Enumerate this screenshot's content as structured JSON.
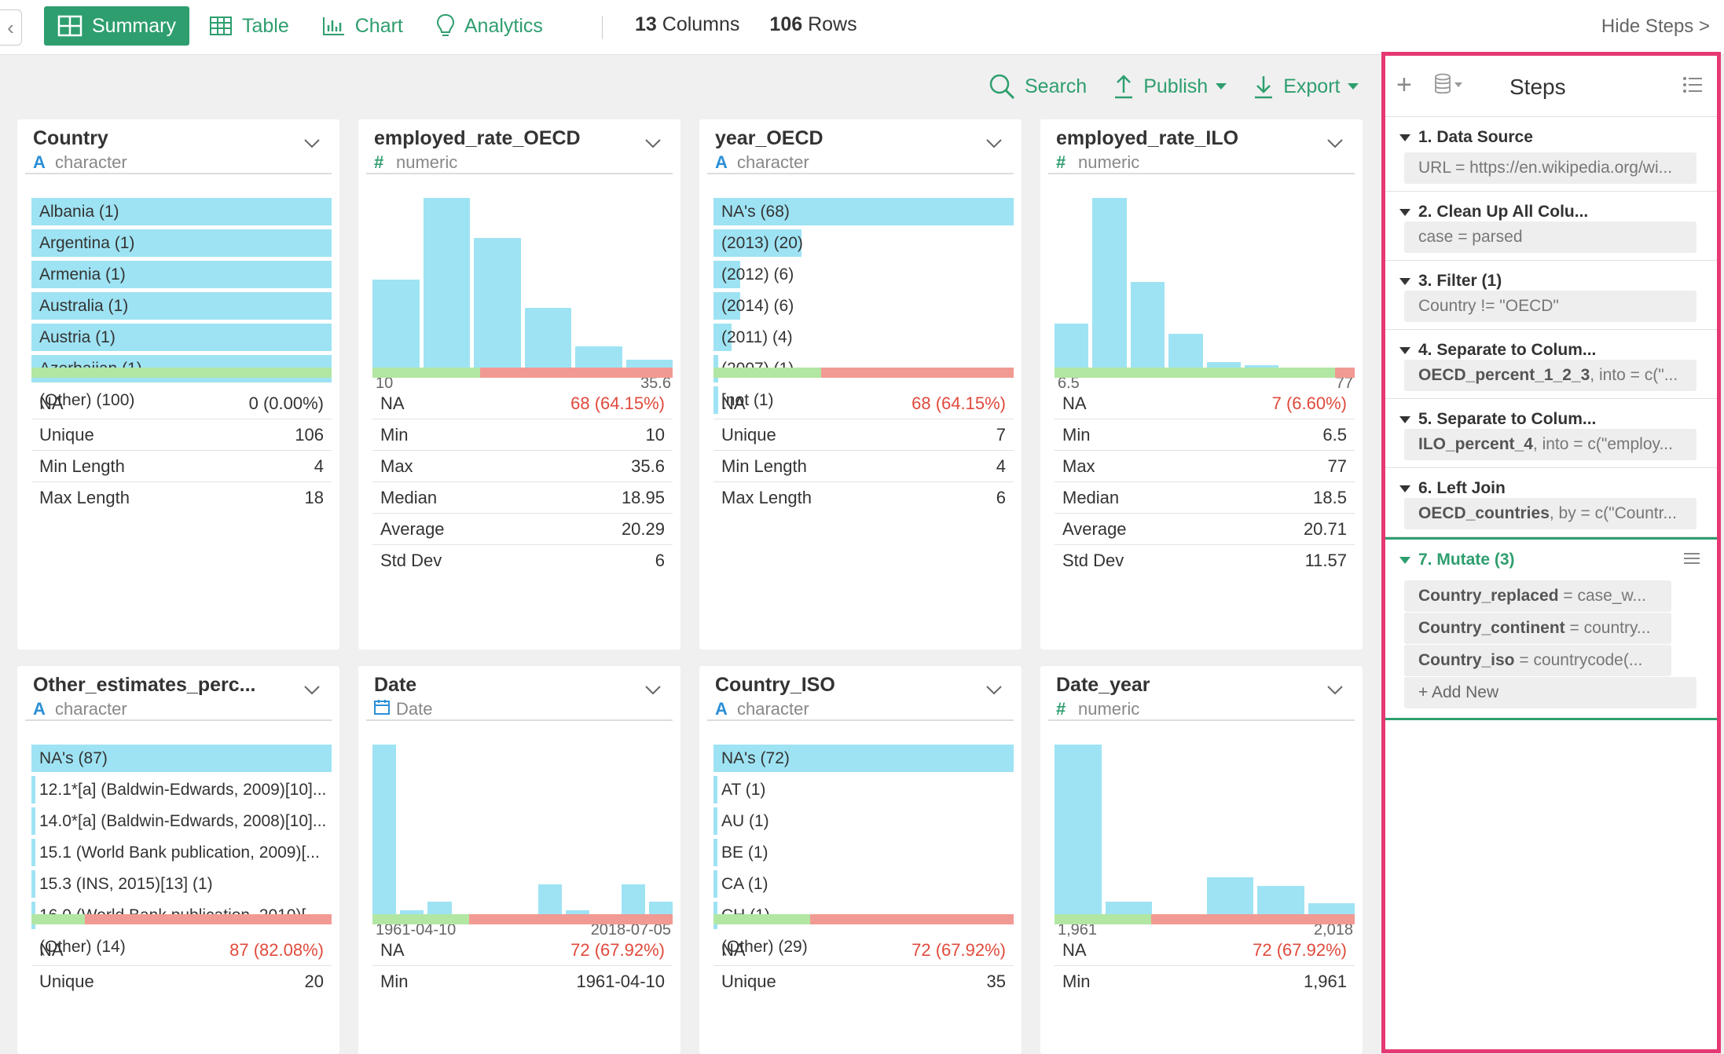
{
  "tabs": [
    {
      "label": "Summary",
      "icon": "summary-icon",
      "active": true
    },
    {
      "label": "Table",
      "icon": "table-icon",
      "active": false
    },
    {
      "label": "Chart",
      "icon": "chart-icon",
      "active": false
    },
    {
      "label": "Analytics",
      "icon": "lightbulb-icon",
      "active": false
    }
  ],
  "counts": {
    "columns_num": "13",
    "columns_label": "Columns",
    "rows_num": "106",
    "rows_label": "Rows"
  },
  "hide_steps": "Hide Steps >",
  "toolbar": {
    "search": "Search",
    "publish": "Publish",
    "export": "Export"
  },
  "colors": {
    "accent": "#2e9e6e",
    "bar": "#9ee3f3",
    "na_ok": "#b2e6a3",
    "na_bad": "#f19a93",
    "highlight": "#e63873",
    "red_text": "#e04a3c"
  },
  "cards": [
    {
      "name": "Country",
      "type_symbol": "A",
      "type": "character",
      "values": [
        {
          "label": "Albania (1)",
          "frac": 1.0
        },
        {
          "label": "Argentina (1)",
          "frac": 1.0
        },
        {
          "label": "Armenia (1)",
          "frac": 1.0
        },
        {
          "label": "Australia (1)",
          "frac": 1.0
        },
        {
          "label": "Austria (1)",
          "frac": 1.0
        },
        {
          "label": "Azerbaijan (1)",
          "frac": 1.0
        },
        {
          "label": "(Other) (100)",
          "frac": 0
        }
      ],
      "na_fraction": 0.0,
      "stats": [
        {
          "label": "NA",
          "value": "0 (0.00%)",
          "red": false
        },
        {
          "label": "Unique",
          "value": "106"
        },
        {
          "label": "Min Length",
          "value": "4"
        },
        {
          "label": "Max Length",
          "value": "18"
        }
      ]
    },
    {
      "name": "employed_rate_OECD",
      "type_symbol": "#",
      "type": "numeric",
      "histogram": [
        0.53,
        1.0,
        0.77,
        0.37,
        0.15,
        0.07
      ],
      "min_label": "10",
      "max_label": "35.6",
      "na_fraction": 0.6415,
      "stats": [
        {
          "label": "NA",
          "value": "68 (64.15%)",
          "red": true
        },
        {
          "label": "Min",
          "value": "10"
        },
        {
          "label": "Max",
          "value": "35.6"
        },
        {
          "label": "Median",
          "value": "18.95"
        },
        {
          "label": "Average",
          "value": "20.29"
        },
        {
          "label": "Std Dev",
          "value": "6"
        }
      ]
    },
    {
      "name": "year_OECD",
      "type_symbol": "A",
      "type": "character",
      "values": [
        {
          "label": "NA's (68)",
          "frac": 1.0
        },
        {
          "label": "(2013) (20)",
          "frac": 0.294
        },
        {
          "label": "(2012) (6)",
          "frac": 0.088
        },
        {
          "label": "(2014) (6)",
          "frac": 0.088
        },
        {
          "label": "(2011) (4)",
          "frac": 0.059
        },
        {
          "label": "(2007) (1)",
          "frac": 0.015
        },
        {
          "label": "[not (1)",
          "frac": 0.015
        }
      ],
      "na_fraction": 0.6415,
      "stats": [
        {
          "label": "NA",
          "value": "68 (64.15%)",
          "red": true
        },
        {
          "label": "Unique",
          "value": "7"
        },
        {
          "label": "Min Length",
          "value": "4"
        },
        {
          "label": "Max Length",
          "value": "6"
        }
      ]
    },
    {
      "name": "employed_rate_ILO",
      "type_symbol": "#",
      "type": "numeric",
      "histogram": [
        0.28,
        1.0,
        0.52,
        0.22,
        0.06,
        0.04,
        0.01,
        0.02
      ],
      "min_label": "6.5",
      "max_label": "77",
      "na_fraction": 0.066,
      "stats": [
        {
          "label": "NA",
          "value": "7 (6.60%)",
          "red": true
        },
        {
          "label": "Min",
          "value": "6.5"
        },
        {
          "label": "Max",
          "value": "77"
        },
        {
          "label": "Median",
          "value": "18.5"
        },
        {
          "label": "Average",
          "value": "20.71"
        },
        {
          "label": "Std Dev",
          "value": "11.57"
        }
      ]
    },
    {
      "name": "Other_estimates_perc...",
      "type_symbol": "A",
      "type": "character",
      "values": [
        {
          "label": "NA's (87)",
          "frac": 1.0
        },
        {
          "label": "12.1*[a] (Baldwin-Edwards, 2009)[10]...",
          "frac": 0.012
        },
        {
          "label": "14.0*[a] (Baldwin-Edwards, 2008)[10]...",
          "frac": 0.012
        },
        {
          "label": "15.1 (World Bank publication, 2009)[...",
          "frac": 0.012
        },
        {
          "label": "15.3 (INS, 2015)[13] (1)",
          "frac": 0.012
        },
        {
          "label": "16.0 (World Bank publication, 2010)[...",
          "frac": 0.012
        },
        {
          "label": "(Other) (14)",
          "frac": 0
        }
      ],
      "na_fraction": 0.8208,
      "stats": [
        {
          "label": "NA",
          "value": "87 (82.08%)",
          "red": true
        },
        {
          "label": "Unique",
          "value": "20"
        }
      ]
    },
    {
      "name": "Date",
      "type_symbol": "date",
      "type": "Date",
      "histogram": [
        1.0,
        0.05,
        0.1,
        0.005,
        0.005,
        0.005,
        0.2,
        0.05,
        0.005,
        0.2,
        0.1
      ],
      "min_label": "1961-04-10",
      "max_label": "2018-07-05",
      "na_fraction": 0.6792,
      "stats": [
        {
          "label": "NA",
          "value": "72 (67.92%)",
          "red": true
        },
        {
          "label": "Min",
          "value": "1961-04-10"
        }
      ]
    },
    {
      "name": "Country_ISO",
      "type_symbol": "A",
      "type": "character",
      "values": [
        {
          "label": "NA's (72)",
          "frac": 1.0
        },
        {
          "label": "AT (1)",
          "frac": 0.012
        },
        {
          "label": "AU (1)",
          "frac": 0.012
        },
        {
          "label": "BE (1)",
          "frac": 0.012
        },
        {
          "label": "CA (1)",
          "frac": 0.012
        },
        {
          "label": "CH (1)",
          "frac": 0.012
        },
        {
          "label": "(Other) (29)",
          "frac": 0
        }
      ],
      "na_fraction": 0.6792,
      "stats": [
        {
          "label": "NA",
          "value": "72 (67.92%)",
          "red": true
        },
        {
          "label": "Unique",
          "value": "35"
        }
      ]
    },
    {
      "name": "Date_year",
      "type_symbol": "#",
      "type": "numeric",
      "histogram": [
        1.0,
        0.1,
        0.005,
        0.24,
        0.19,
        0.09
      ],
      "min_label": "1,961",
      "max_label": "2,018",
      "na_fraction": 0.6792,
      "stats": [
        {
          "label": "NA",
          "value": "72 (67.92%)",
          "red": true
        },
        {
          "label": "Min",
          "value": "1,961"
        }
      ]
    }
  ],
  "steps": {
    "title": "Steps",
    "items": [
      {
        "title": "1. Data Source",
        "chips": [
          {
            "bold": "",
            "text": "URL = https://en.wikipedia.org/wi..."
          }
        ]
      },
      {
        "title": "2. Clean Up All Colu...",
        "chips": [
          {
            "bold": "",
            "text": "case = parsed"
          }
        ]
      },
      {
        "title": "3. Filter (1)",
        "chips": [
          {
            "bold": "",
            "text": "Country != \"OECD\""
          }
        ]
      },
      {
        "title": "4. Separate to Colum...",
        "chips": [
          {
            "bold": "OECD_percent_1_2_3",
            "text": ", into = c(\"..."
          }
        ]
      },
      {
        "title": "5. Separate to Colum...",
        "chips": [
          {
            "bold": "ILO_percent_4",
            "text": ", into = c(\"employ..."
          }
        ]
      },
      {
        "title": "6. Left Join",
        "chips": [
          {
            "bold": "OECD_countries",
            "text": ", by = c(\"Countr..."
          }
        ]
      },
      {
        "title": "7. Mutate (3)",
        "active": true,
        "chips": [
          {
            "bold": "Country_replaced",
            "text": " = case_w..."
          },
          {
            "bold": "Country_continent",
            "text": " = country..."
          },
          {
            "bold": "Country_iso",
            "text": " = countrycode(..."
          }
        ],
        "add_new": "+ Add New"
      }
    ]
  }
}
